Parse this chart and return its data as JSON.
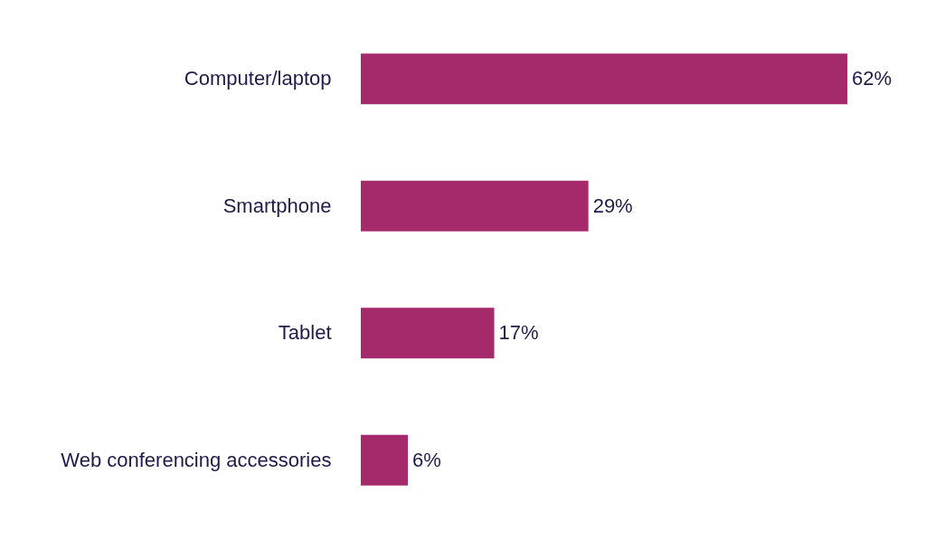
{
  "chart_data": {
    "type": "bar",
    "orientation": "horizontal",
    "categories": [
      "Computer/laptop",
      "Smartphone",
      "Tablet",
      "Web conferencing accessories"
    ],
    "values": [
      62,
      29,
      17,
      6
    ],
    "value_labels": [
      "62%",
      "29%",
      "17%",
      "6%"
    ],
    "color": "#a52a6b"
  }
}
